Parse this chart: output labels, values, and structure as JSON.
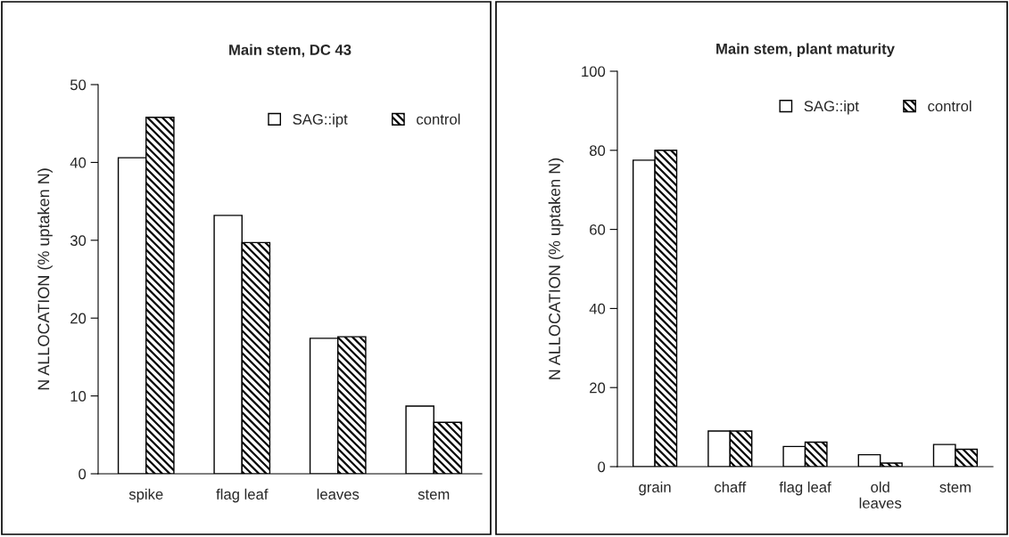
{
  "chart_data": [
    {
      "type": "bar",
      "title": "Main stem, DC 43",
      "ylabel": "N ALLOCATION (% uptaken N)",
      "categories": [
        "spike",
        "flag leaf",
        "leaves",
        "stem"
      ],
      "series": [
        {
          "name": "SAG::ipt",
          "color": "#ffffff",
          "values": [
            40.6,
            33.2,
            17.4,
            8.7
          ]
        },
        {
          "name": "control",
          "color": "#000000",
          "values": [
            45.8,
            29.7,
            17.6,
            6.6
          ]
        }
      ],
      "ylim": [
        0,
        50
      ],
      "yticks": [
        0,
        10,
        20,
        30,
        40,
        50
      ],
      "grid": false,
      "legend": "top right"
    },
    {
      "type": "bar",
      "title": "Main stem, plant maturity",
      "ylabel": "N ALLOCATION (% uptaken N)",
      "categories": [
        "grain",
        "chaff",
        "flag leaf",
        "old\nleaves",
        "stem"
      ],
      "series": [
        {
          "name": "SAG::ipt",
          "color": "#ffffff",
          "values": [
            77.5,
            9.0,
            5.1,
            3.0,
            5.6
          ]
        },
        {
          "name": "control",
          "color": "#000000",
          "values": [
            80.0,
            9.0,
            6.2,
            0.9,
            4.4
          ]
        }
      ],
      "ylim": [
        0,
        100
      ],
      "yticks": [
        0,
        20,
        40,
        60,
        80,
        100
      ],
      "grid": false,
      "legend": "top right"
    }
  ]
}
